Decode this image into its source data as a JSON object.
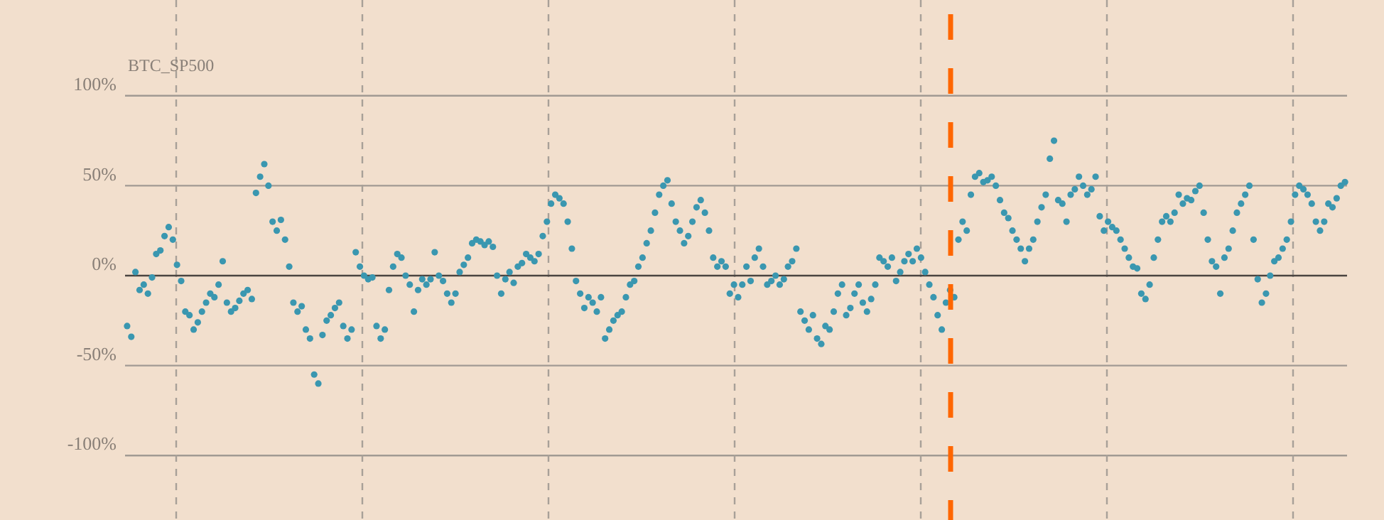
{
  "chart_data": {
    "type": "scatter",
    "title": "BTC_SP500",
    "categories": [
      null,
      null,
      null,
      null,
      null,
      null,
      null,
      null,
      null,
      null,
      null,
      null,
      null,
      null,
      null,
      null,
      null,
      null,
      null,
      null,
      null,
      null,
      null,
      null,
      null,
      null,
      null,
      null,
      null,
      null,
      null,
      null,
      null,
      null,
      null,
      null,
      null,
      null,
      null,
      null,
      null,
      null,
      null,
      null,
      null,
      null,
      null,
      null,
      null,
      null,
      null,
      null,
      null,
      null,
      null,
      null,
      null,
      null,
      null,
      null,
      null,
      null,
      null,
      null,
      null,
      null,
      null,
      null,
      null,
      null,
      null,
      null,
      null,
      null,
      null,
      null,
      null,
      null,
      null,
      null,
      null,
      null,
      null,
      null,
      null,
      null,
      null,
      null,
      null,
      null,
      null,
      null,
      null,
      null,
      null,
      null,
      null,
      null,
      null,
      null,
      null,
      null,
      null,
      null,
      null,
      null,
      null,
      null,
      null,
      null,
      null,
      null,
      null,
      null,
      null,
      null,
      null,
      null,
      null,
      null,
      null,
      null,
      null,
      null,
      null,
      null,
      null,
      null,
      null,
      null,
      null,
      null,
      null,
      null,
      null,
      null,
      null,
      null,
      null,
      null,
      null,
      null,
      null,
      null,
      null,
      null,
      null,
      null,
      null,
      null,
      null,
      null,
      null,
      null,
      null,
      null,
      null,
      null,
      null,
      null,
      null,
      null,
      null,
      null,
      null,
      null,
      null,
      null,
      null,
      null,
      null,
      null,
      null,
      null,
      null,
      null,
      null,
      null,
      null,
      null,
      null,
      null,
      null,
      null,
      null,
      null,
      null,
      null,
      null,
      null,
      null,
      null,
      null,
      null,
      null,
      null,
      null,
      null,
      null,
      null,
      null,
      null,
      null,
      null,
      null,
      null,
      null,
      null,
      null,
      null,
      null,
      null,
      null,
      null,
      null,
      null,
      null,
      null,
      null,
      null,
      null,
      null,
      null,
      null,
      null,
      null,
      null,
      null,
      null,
      null,
      null,
      null,
      null,
      null,
      null,
      null,
      null,
      null,
      null,
      null,
      null,
      null,
      null,
      null,
      null,
      null,
      null,
      null,
      null,
      null,
      null,
      null,
      null,
      null,
      null,
      null,
      null,
      null,
      null,
      null,
      null,
      null,
      null,
      null,
      null,
      null,
      null,
      null,
      null,
      null,
      null,
      null,
      null,
      null,
      null,
      null,
      null,
      null,
      null,
      null,
      null,
      null,
      null,
      null,
      null,
      null,
      null,
      null,
      null,
      null,
      null,
      null,
      null,
      null
    ],
    "ylim": [
      -100,
      100
    ],
    "yticks": [
      {
        "value": -100,
        "label": "-100%"
      },
      {
        "value": -50,
        "label": "-50%"
      },
      {
        "value": 0,
        "label": "0%"
      },
      {
        "value": 50,
        "label": "50%"
      },
      {
        "value": 100,
        "label": "100%"
      }
    ],
    "grid": "y",
    "marker": "circle",
    "series": [
      {
        "color": "#3a97b0",
        "values": [
          -28,
          -34,
          2,
          -8,
          -5,
          -10,
          -1,
          12,
          14,
          22,
          27,
          20,
          6,
          -3,
          -20,
          -22,
          -30,
          -26,
          -20,
          -15,
          -10,
          -12,
          -5,
          8,
          -15,
          -20,
          -18,
          -14,
          -10,
          -8,
          -13,
          46,
          55,
          62,
          50,
          30,
          25,
          31,
          20,
          5,
          -15,
          -20,
          -17,
          -30,
          -35,
          -55,
          -60,
          -33,
          -25,
          -22,
          -18,
          -15,
          -28,
          -35,
          -30,
          13,
          5,
          0,
          -2,
          -1,
          -28,
          -35,
          -30,
          -8,
          5,
          12,
          10,
          0,
          -5,
          -20,
          -8,
          -2,
          -5,
          -2,
          13,
          0,
          -3,
          -10,
          -15,
          -10,
          2,
          6,
          10,
          18,
          20,
          19,
          17,
          19,
          16,
          0,
          -10,
          -2,
          2,
          -4,
          5,
          7,
          12,
          10,
          8,
          12,
          22,
          30,
          40,
          45,
          43,
          40,
          30,
          15,
          -3,
          -10,
          -18,
          -12,
          -15,
          -20,
          -12,
          -35,
          -30,
          -25,
          -22,
          -20,
          -12,
          -5,
          -3,
          5,
          10,
          18,
          25,
          35,
          45,
          50,
          53,
          40,
          30,
          25,
          18,
          22,
          30,
          38,
          42,
          35,
          25,
          10,
          5,
          8,
          5,
          -10,
          -5,
          -12,
          -5,
          5,
          -3,
          10,
          15,
          5,
          -5,
          -3,
          0,
          -5,
          -2,
          5,
          8,
          15,
          -20,
          -25,
          -30,
          -22,
          -35,
          -38,
          -28,
          -30,
          -20,
          -10,
          -5,
          -22,
          -18,
          -10,
          -5,
          -15,
          -20,
          -13,
          -5,
          10,
          8,
          5,
          10,
          -3,
          2,
          8,
          12,
          8,
          15,
          10,
          2,
          -5,
          -12,
          -22,
          -30,
          -15,
          -8,
          -12,
          20,
          30,
          25,
          45,
          55,
          57,
          52,
          53,
          55,
          50,
          42,
          35,
          32,
          25,
          20,
          15,
          8,
          15,
          20,
          30,
          38,
          45,
          65,
          75,
          42,
          40,
          30,
          45,
          48,
          55,
          50,
          45,
          48,
          55,
          33,
          25,
          30,
          27,
          25,
          20,
          15,
          10,
          5,
          4,
          -10,
          -13,
          -5,
          10,
          20,
          30,
          33,
          30,
          35,
          45,
          40,
          43,
          42,
          47,
          50,
          35,
          20,
          8,
          5,
          -10,
          10,
          15,
          25,
          35,
          40,
          45,
          50,
          20,
          -2,
          -15,
          -10,
          0,
          8,
          10,
          15,
          20,
          30,
          45,
          50,
          48,
          45,
          40,
          30,
          25,
          30,
          40,
          38,
          43,
          50,
          52
        ]
      }
    ]
  }
}
